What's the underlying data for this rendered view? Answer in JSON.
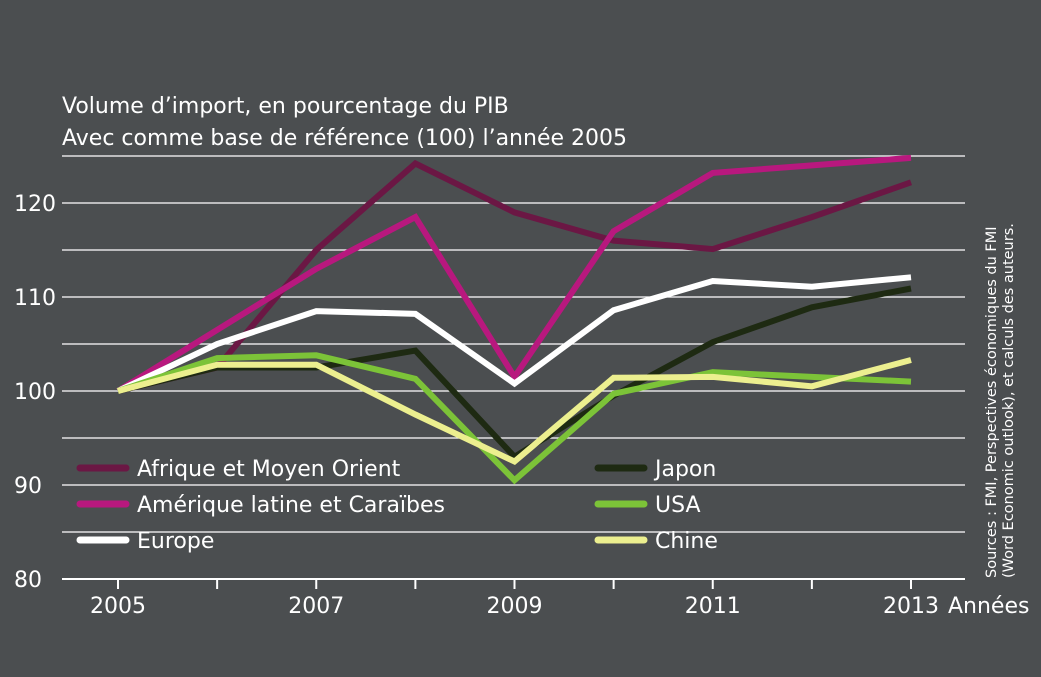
{
  "chart_data": {
    "type": "line",
    "title": "Volume d’import, en pourcentage du PIB",
    "subtitle": "Avec comme base de référence (100) l’année 2005",
    "xlabel": "Années",
    "ylabel": "",
    "x": [
      2005,
      2006,
      2007,
      2008,
      2009,
      2010,
      2011,
      2012,
      2013
    ],
    "x_ticks": [
      "2005",
      "2007",
      "2009",
      "2011",
      "2013"
    ],
    "y_ticks": [
      "80",
      "90",
      "100",
      "110",
      "120"
    ],
    "ylim": [
      80,
      127
    ],
    "grid": true,
    "legend_position": "bottom-left inside plot, two columns",
    "series": [
      {
        "name": "Afrique et Moyen Orient",
        "color": "#6b1744",
        "values": [
          100,
          102.5,
          115,
          124.2,
          119,
          116,
          115.1,
          118.5,
          122.2
        ]
      },
      {
        "name": "Amérique latine et Caraïbes",
        "color": "#b8187e",
        "values": [
          100,
          106.5,
          113,
          118.5,
          101.5,
          117,
          123.2,
          124,
          124.8
        ]
      },
      {
        "name": "Europe",
        "color": "#ffffff",
        "values": [
          100,
          105,
          108.5,
          108.2,
          100.8,
          108.6,
          111.7,
          111.1,
          112.1
        ]
      },
      {
        "name": "Japon",
        "color": "#1e2a12",
        "values": [
          100,
          102.5,
          102.5,
          104.3,
          93,
          99.5,
          105.2,
          108.9,
          110.9
        ]
      },
      {
        "name": "USA",
        "color": "#7cc338",
        "values": [
          100,
          103.5,
          103.8,
          101.3,
          90.5,
          99.7,
          102,
          101.5,
          101
        ]
      },
      {
        "name": "Chine",
        "color": "#ecef8f",
        "values": [
          100,
          102.8,
          102.8,
          97.5,
          92.5,
          101.4,
          101.5,
          100.5,
          103.3
        ]
      }
    ],
    "source": [
      "Sources : FMI, Perspectives économiques du FMI",
      "(Word Economic outlook), et calculs des auteurs."
    ]
  }
}
